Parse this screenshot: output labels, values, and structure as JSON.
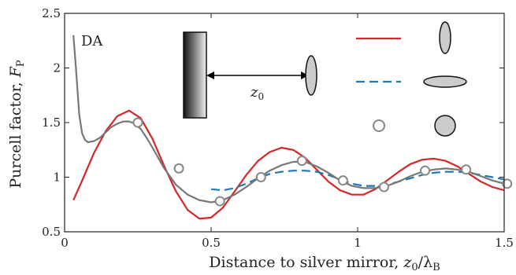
{
  "chart_data": {
    "type": "line",
    "title": "",
    "xlabel_main": "Distance to silver mirror, ",
    "xlabel_var": "z",
    "xlabel_var_sub": "0",
    "xlabel_div": "/λ",
    "xlabel_div_sub": "B",
    "ylabel_main": "Purcell factor, ",
    "ylabel_var": "F",
    "ylabel_var_sub": "P",
    "xlim": [
      0,
      1.5
    ],
    "ylim": [
      0.5,
      2.5
    ],
    "xticks": [
      "0",
      "0.5",
      "1",
      "1.5"
    ],
    "xtick_values": [
      0,
      0.5,
      1,
      1.5
    ],
    "yticks": [
      "0.5",
      "1",
      "1.5",
      "2",
      "2.5"
    ],
    "ytick_values": [
      0.5,
      1,
      1.5,
      2,
      2.5
    ],
    "grid": false,
    "annotation_da": "DA",
    "annotation_z": "z",
    "annotation_z_sub": "0",
    "series": [
      {
        "style": "solid",
        "color": "#d62728",
        "legend_marker": "vertical-ellipse",
        "x": [
          0.03,
          0.06,
          0.1,
          0.14,
          0.18,
          0.22,
          0.26,
          0.3,
          0.34,
          0.38,
          0.42,
          0.46,
          0.5,
          0.54,
          0.58,
          0.62,
          0.66,
          0.7,
          0.74,
          0.78,
          0.82,
          0.86,
          0.9,
          0.94,
          0.98,
          1.02,
          1.06,
          1.1,
          1.14,
          1.18,
          1.22,
          1.26,
          1.3,
          1.34,
          1.38,
          1.42,
          1.46,
          1.5
        ],
        "y": [
          0.79,
          0.97,
          1.22,
          1.42,
          1.56,
          1.61,
          1.54,
          1.35,
          1.1,
          0.87,
          0.7,
          0.62,
          0.63,
          0.72,
          0.87,
          1.02,
          1.15,
          1.23,
          1.27,
          1.25,
          1.18,
          1.07,
          0.96,
          0.88,
          0.84,
          0.84,
          0.89,
          0.97,
          1.05,
          1.12,
          1.16,
          1.17,
          1.15,
          1.1,
          1.03,
          0.96,
          0.91,
          0.88
        ]
      },
      {
        "style": "dashed",
        "color": "#1f77b4",
        "legend_marker": "horizontal-ellipse",
        "x": [
          0.5,
          0.54,
          0.58,
          0.62,
          0.66,
          0.7,
          0.74,
          0.78,
          0.82,
          0.86,
          0.9,
          0.94,
          0.98,
          1.02,
          1.06,
          1.1,
          1.14,
          1.18,
          1.22,
          1.26,
          1.3,
          1.34,
          1.38,
          1.42,
          1.46,
          1.5
        ],
        "y": [
          0.89,
          0.88,
          0.9,
          0.94,
          0.99,
          1.03,
          1.05,
          1.06,
          1.06,
          1.05,
          1.02,
          0.98,
          0.94,
          0.92,
          0.92,
          0.93,
          0.96,
          0.99,
          1.02,
          1.04,
          1.05,
          1.05,
          1.04,
          1.02,
          1.0,
          0.98
        ]
      },
      {
        "style": "solid",
        "color": "#777777",
        "legend_marker": "none",
        "x": [
          0.03,
          0.04,
          0.05,
          0.06,
          0.07,
          0.08,
          0.1,
          0.12,
          0.14,
          0.16,
          0.18,
          0.2,
          0.22,
          0.24,
          0.26,
          0.28,
          0.3,
          0.34,
          0.38,
          0.42,
          0.46,
          0.5,
          0.54,
          0.58,
          0.62,
          0.66,
          0.7,
          0.74,
          0.78,
          0.82,
          0.86,
          0.9,
          0.94,
          0.98,
          1.02,
          1.06,
          1.1,
          1.14,
          1.18,
          1.22,
          1.26,
          1.3,
          1.34,
          1.38,
          1.42,
          1.46,
          1.5
        ],
        "y": [
          2.3,
          1.95,
          1.57,
          1.4,
          1.34,
          1.32,
          1.33,
          1.36,
          1.41,
          1.46,
          1.49,
          1.51,
          1.51,
          1.49,
          1.44,
          1.36,
          1.27,
          1.08,
          0.93,
          0.84,
          0.79,
          0.77,
          0.79,
          0.84,
          0.91,
          0.99,
          1.06,
          1.11,
          1.14,
          1.14,
          1.1,
          1.04,
          0.97,
          0.92,
          0.9,
          0.9,
          0.92,
          0.96,
          1.01,
          1.05,
          1.07,
          1.08,
          1.07,
          1.05,
          1.01,
          0.97,
          0.94
        ]
      },
      {
        "style": "markers",
        "color": "#888888",
        "legend_marker": "filled-circle",
        "x": [
          0.25,
          0.39,
          0.53,
          0.67,
          0.81,
          0.95,
          1.09,
          1.23,
          1.37,
          1.51
        ],
        "y": [
          1.5,
          1.08,
          0.78,
          1.0,
          1.15,
          0.97,
          0.91,
          1.06,
          1.07,
          0.94
        ]
      }
    ]
  }
}
